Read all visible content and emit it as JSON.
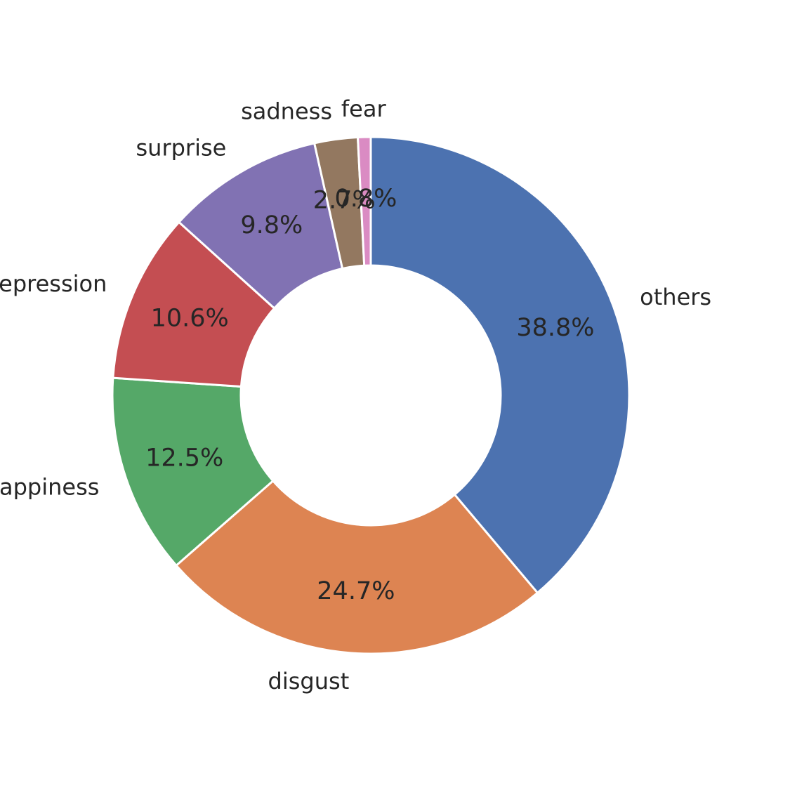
{
  "chart_data": {
    "type": "pie",
    "style": "donut",
    "start_angle_deg": 90,
    "direction": "clockwise",
    "slices": [
      {
        "label": "others",
        "value": 38.8,
        "pct_label": "38.8%",
        "color": "#4C72B0"
      },
      {
        "label": "disgust",
        "value": 24.7,
        "pct_label": "24.7%",
        "color": "#DD8452"
      },
      {
        "label": "happiness",
        "value": 12.5,
        "pct_label": "12.5%",
        "color": "#55A868"
      },
      {
        "label": "repression",
        "value": 10.6,
        "pct_label": "10.6%",
        "color": "#C44E52"
      },
      {
        "label": "surprise",
        "value": 9.8,
        "pct_label": "9.8%",
        "color": "#8172B3"
      },
      {
        "label": "sadness",
        "value": 2.7,
        "pct_label": "2.7%",
        "color": "#937860"
      },
      {
        "label": "fear",
        "value": 0.8,
        "pct_label": "0.8%",
        "color": "#DA8BC3"
      }
    ],
    "legend": "none"
  }
}
